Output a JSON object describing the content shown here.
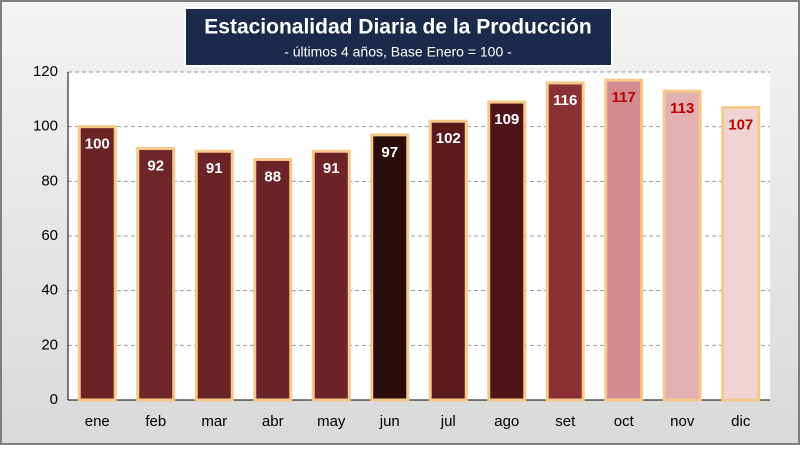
{
  "chart_data": {
    "type": "bar",
    "title": "Estacionalidad Diaria de la Producción",
    "subtitle": "- últimos 4 años, Base Enero = 100 -",
    "categories": [
      "ene",
      "feb",
      "mar",
      "abr",
      "may",
      "jun",
      "jul",
      "ago",
      "set",
      "oct",
      "nov",
      "dic"
    ],
    "values": [
      100,
      92,
      91,
      88,
      91,
      97,
      102,
      109,
      116,
      117,
      113,
      107
    ],
    "colors": [
      "#6b2326",
      "#6e2528",
      "#6a2427",
      "#6b2427",
      "#6c2429",
      "#2a0c0d",
      "#5a1a1e",
      "#4f1519",
      "#8b3033",
      "#d08c8e",
      "#e2b0b3",
      "#f0d4d4"
    ],
    "label_colors": [
      "#ffffff",
      "#ffffff",
      "#ffffff",
      "#ffffff",
      "#ffffff",
      "#ffffff",
      "#ffffff",
      "#ffffff",
      "#ffffff",
      "#c00000",
      "#c00000",
      "#c00000"
    ],
    "ylim": [
      0,
      120
    ],
    "yticks": [
      0,
      20,
      40,
      60,
      80,
      100,
      120
    ],
    "grid": true
  }
}
